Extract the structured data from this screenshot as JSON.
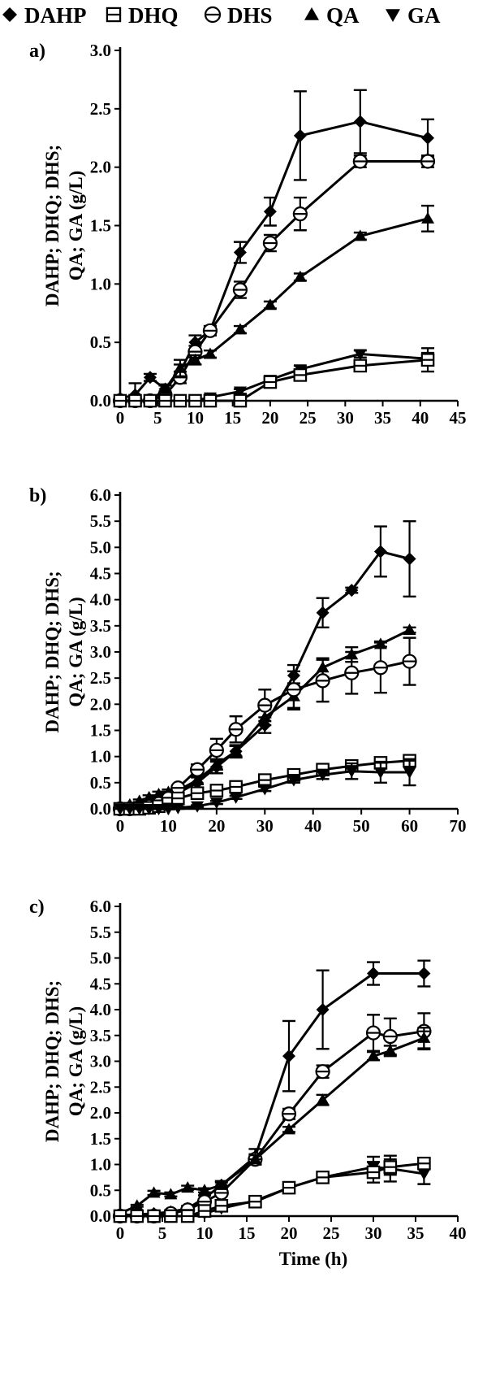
{
  "legend": [
    {
      "name": "DAHP",
      "marker": "diamond"
    },
    {
      "name": "DHQ",
      "marker": "square-dash"
    },
    {
      "name": "DHS",
      "marker": "circle-dash"
    },
    {
      "name": "QA",
      "marker": "triangle-up"
    },
    {
      "name": "GA",
      "marker": "triangle-down"
    }
  ],
  "colors": {
    "ink": "#000000",
    "background": "#ffffff"
  },
  "chart_data": [
    {
      "type": "line",
      "panel_label": "a)",
      "ylabel_lines": [
        "DAHP; DHQ; DHS;",
        "QA; GA (g/L)"
      ],
      "xlabel": "",
      "xlim": [
        0,
        45
      ],
      "ylim": [
        0,
        3.0
      ],
      "xticks": [
        0,
        5,
        10,
        15,
        20,
        25,
        30,
        35,
        40,
        45
      ],
      "yticks": [
        0,
        0.5,
        1.0,
        1.5,
        2.0,
        2.5,
        3.0
      ],
      "grid": false,
      "series": [
        {
          "name": "DAHP",
          "marker": "diamond",
          "x": [
            0,
            2,
            4,
            6,
            8,
            10,
            12,
            16,
            20,
            24,
            32,
            41
          ],
          "y": [
            0.02,
            0.05,
            0.2,
            0.1,
            0.25,
            0.5,
            0.6,
            1.27,
            1.62,
            2.27,
            2.39,
            2.25
          ],
          "err": [
            0.02,
            0.1,
            0.03,
            0.04,
            0.06,
            0.06,
            0.04,
            0.09,
            0.12,
            0.38,
            0.27,
            0.16
          ]
        },
        {
          "name": "DHS",
          "marker": "circle-dash",
          "x": [
            0,
            2,
            4,
            6,
            8,
            10,
            12,
            16,
            20,
            24,
            32,
            41
          ],
          "y": [
            0.0,
            0.0,
            0.0,
            0.05,
            0.2,
            0.42,
            0.6,
            0.95,
            1.35,
            1.6,
            2.05,
            2.05
          ],
          "err": [
            0.01,
            0.01,
            0.01,
            0.03,
            0.05,
            0.05,
            0.04,
            0.07,
            0.07,
            0.14,
            0.05,
            0.05
          ]
        },
        {
          "name": "QA",
          "marker": "triangle-up",
          "x": [
            0,
            2,
            4,
            6,
            8,
            10,
            12,
            16,
            20,
            24,
            32,
            41
          ],
          "y": [
            0.0,
            0.0,
            0.0,
            0.1,
            0.28,
            0.35,
            0.4,
            0.61,
            0.82,
            1.06,
            1.41,
            1.56
          ],
          "err": [
            0.01,
            0.01,
            0.01,
            0.03,
            0.07,
            0.04,
            0.03,
            0.03,
            0.03,
            0.03,
            0.03,
            0.11
          ]
        },
        {
          "name": "GA",
          "marker": "triangle-down",
          "x": [
            0,
            2,
            4,
            6,
            8,
            10,
            12,
            16,
            20,
            24,
            32,
            41
          ],
          "y": [
            0.0,
            0.0,
            0.0,
            0.0,
            0.0,
            0.0,
            0.03,
            0.08,
            0.18,
            0.27,
            0.4,
            0.36
          ],
          "err": [
            0.01,
            0.01,
            0.01,
            0.01,
            0.01,
            0.01,
            0.02,
            0.02,
            0.02,
            0.03,
            0.03,
            0.05
          ]
        },
        {
          "name": "DHQ",
          "marker": "square-dash",
          "x": [
            0,
            2,
            4,
            6,
            8,
            10,
            12,
            16,
            20,
            24,
            32,
            41
          ],
          "y": [
            0.0,
            0.0,
            0.0,
            0.0,
            0.0,
            0.0,
            0.0,
            0.0,
            0.16,
            0.22,
            0.3,
            0.35
          ],
          "err": [
            0.01,
            0.01,
            0.01,
            0.01,
            0.01,
            0.01,
            0.01,
            0.01,
            0.02,
            0.03,
            0.03,
            0.1
          ]
        }
      ]
    },
    {
      "type": "line",
      "panel_label": "b)",
      "ylabel_lines": [
        "DAHP; DHQ; DHS;",
        "QA; GA (g/L)"
      ],
      "xlabel": "",
      "xlim": [
        0,
        70
      ],
      "ylim": [
        0,
        6.0
      ],
      "xticks": [
        0,
        10,
        20,
        30,
        40,
        50,
        60,
        70
      ],
      "yticks": [
        0,
        0.5,
        1.0,
        1.5,
        2.0,
        2.5,
        3.0,
        3.5,
        4.0,
        4.5,
        5.0,
        5.5,
        6.0
      ],
      "grid": false,
      "series": [
        {
          "name": "DAHP",
          "marker": "diamond",
          "x": [
            0,
            2,
            4,
            6,
            8,
            10,
            12,
            16,
            20,
            24,
            30,
            36,
            42,
            48,
            54,
            60
          ],
          "y": [
            0.02,
            0.05,
            0.1,
            0.15,
            0.2,
            0.25,
            0.3,
            0.5,
            0.8,
            1.1,
            1.6,
            2.55,
            3.75,
            4.18,
            4.92,
            4.78
          ],
          "err": [
            0.02,
            0.02,
            0.03,
            0.04,
            0.05,
            0.05,
            0.05,
            0.1,
            0.12,
            0.12,
            0.15,
            0.2,
            0.28,
            0.05,
            0.48,
            0.72
          ]
        },
        {
          "name": "QA",
          "marker": "triangle-up",
          "x": [
            0,
            2,
            4,
            6,
            8,
            10,
            12,
            16,
            20,
            24,
            30,
            36,
            42,
            48,
            54,
            60
          ],
          "y": [
            0.05,
            0.08,
            0.15,
            0.22,
            0.28,
            0.32,
            0.35,
            0.55,
            0.85,
            1.1,
            1.75,
            2.15,
            2.7,
            2.95,
            3.15,
            3.42
          ],
          "err": [
            0.02,
            0.02,
            0.03,
            0.04,
            0.05,
            0.05,
            0.05,
            0.08,
            0.1,
            0.1,
            0.15,
            0.25,
            0.18,
            0.14,
            0.05,
            0.05
          ]
        },
        {
          "name": "DHS",
          "marker": "circle-dash",
          "x": [
            0,
            2,
            4,
            6,
            8,
            10,
            12,
            16,
            20,
            24,
            30,
            36,
            42,
            48,
            54,
            60
          ],
          "y": [
            0.0,
            0.0,
            0.02,
            0.05,
            0.1,
            0.2,
            0.4,
            0.75,
            1.12,
            1.52,
            1.98,
            2.28,
            2.45,
            2.6,
            2.7,
            2.82
          ],
          "err": [
            0.01,
            0.01,
            0.02,
            0.02,
            0.03,
            0.05,
            0.05,
            0.1,
            0.22,
            0.25,
            0.3,
            0.35,
            0.4,
            0.4,
            0.48,
            0.45
          ]
        },
        {
          "name": "DHQ",
          "marker": "square-dash",
          "x": [
            0,
            2,
            4,
            6,
            8,
            10,
            12,
            16,
            20,
            24,
            30,
            36,
            42,
            48,
            54,
            60
          ],
          "y": [
            0.0,
            0.0,
            0.0,
            0.02,
            0.05,
            0.1,
            0.2,
            0.3,
            0.35,
            0.42,
            0.55,
            0.65,
            0.75,
            0.82,
            0.88,
            0.92
          ],
          "err": [
            0.01,
            0.01,
            0.01,
            0.02,
            0.02,
            0.03,
            0.03,
            0.03,
            0.03,
            0.03,
            0.04,
            0.04,
            0.04,
            0.05,
            0.06,
            0.06
          ]
        },
        {
          "name": "GA",
          "marker": "triangle-down",
          "x": [
            0,
            2,
            4,
            6,
            8,
            10,
            12,
            16,
            20,
            24,
            30,
            36,
            42,
            48,
            54,
            60
          ],
          "y": [
            0.0,
            0.0,
            0.0,
            0.0,
            0.0,
            0.0,
            0.02,
            0.05,
            0.12,
            0.22,
            0.38,
            0.55,
            0.65,
            0.72,
            0.7,
            0.7
          ],
          "err": [
            0.01,
            0.01,
            0.01,
            0.01,
            0.01,
            0.01,
            0.02,
            0.02,
            0.03,
            0.03,
            0.04,
            0.05,
            0.08,
            0.15,
            0.2,
            0.25
          ]
        }
      ]
    },
    {
      "type": "line",
      "panel_label": "c)",
      "ylabel_lines": [
        "DAHP; DHQ; DHS;",
        "QA; GA (g/L)"
      ],
      "xlabel": "Time (h)",
      "xlim": [
        0,
        40
      ],
      "ylim": [
        0,
        6.0
      ],
      "xticks": [
        0,
        5,
        10,
        15,
        20,
        25,
        30,
        35,
        40
      ],
      "yticks": [
        0,
        0.5,
        1.0,
        1.5,
        2.0,
        2.5,
        3.0,
        3.5,
        4.0,
        4.5,
        5.0,
        5.5,
        6.0
      ],
      "grid": false,
      "series": [
        {
          "name": "DAHP",
          "marker": "diamond",
          "x": [
            0,
            2,
            4,
            6,
            8,
            10,
            12,
            16,
            20,
            24,
            30,
            36
          ],
          "y": [
            0.02,
            0.03,
            0.05,
            0.08,
            0.15,
            0.35,
            0.6,
            1.15,
            3.1,
            4.0,
            4.7,
            4.7
          ],
          "err": [
            0.01,
            0.02,
            0.02,
            0.03,
            0.05,
            0.05,
            0.08,
            0.15,
            0.68,
            0.76,
            0.22,
            0.25
          ]
        },
        {
          "name": "DHS",
          "marker": "circle-dash",
          "x": [
            0,
            2,
            4,
            6,
            8,
            10,
            12,
            16,
            20,
            24,
            30,
            32,
            36
          ],
          "y": [
            0.0,
            0.0,
            0.0,
            0.05,
            0.12,
            0.28,
            0.45,
            1.1,
            1.98,
            2.8,
            3.55,
            3.48,
            3.58
          ],
          "err": [
            0.01,
            0.01,
            0.01,
            0.02,
            0.03,
            0.05,
            0.05,
            0.1,
            0.1,
            0.12,
            0.35,
            0.35,
            0.35
          ]
        },
        {
          "name": "QA",
          "marker": "triangle-up",
          "x": [
            0,
            2,
            4,
            6,
            8,
            10,
            12,
            16,
            20,
            24,
            30,
            32,
            36
          ],
          "y": [
            0.05,
            0.2,
            0.45,
            0.42,
            0.55,
            0.5,
            0.6,
            1.1,
            1.68,
            2.25,
            3.1,
            3.2,
            3.45
          ],
          "err": [
            0.02,
            0.02,
            0.04,
            0.04,
            0.04,
            0.04,
            0.05,
            0.08,
            0.05,
            0.1,
            0.08,
            0.1,
            0.2
          ]
        },
        {
          "name": "GA",
          "marker": "triangle-down",
          "x": [
            0,
            2,
            4,
            6,
            8,
            10,
            12,
            16,
            20,
            24,
            30,
            32,
            36
          ],
          "y": [
            0.0,
            0.0,
            0.0,
            0.0,
            0.0,
            0.05,
            0.15,
            0.3,
            0.55,
            0.75,
            0.95,
            0.92,
            0.82
          ],
          "err": [
            0.01,
            0.01,
            0.01,
            0.01,
            0.01,
            0.02,
            0.03,
            0.04,
            0.05,
            0.06,
            0.2,
            0.25,
            0.2
          ]
        },
        {
          "name": "DHQ",
          "marker": "square-dash",
          "x": [
            0,
            2,
            4,
            6,
            8,
            10,
            12,
            16,
            20,
            24,
            30,
            32,
            36
          ],
          "y": [
            0.0,
            0.0,
            0.0,
            0.0,
            0.0,
            0.1,
            0.2,
            0.28,
            0.55,
            0.75,
            0.85,
            0.95,
            1.02
          ],
          "err": [
            0.01,
            0.01,
            0.01,
            0.01,
            0.01,
            0.02,
            0.03,
            0.05,
            0.05,
            0.06,
            0.2,
            0.15,
            0.1
          ]
        }
      ]
    }
  ]
}
